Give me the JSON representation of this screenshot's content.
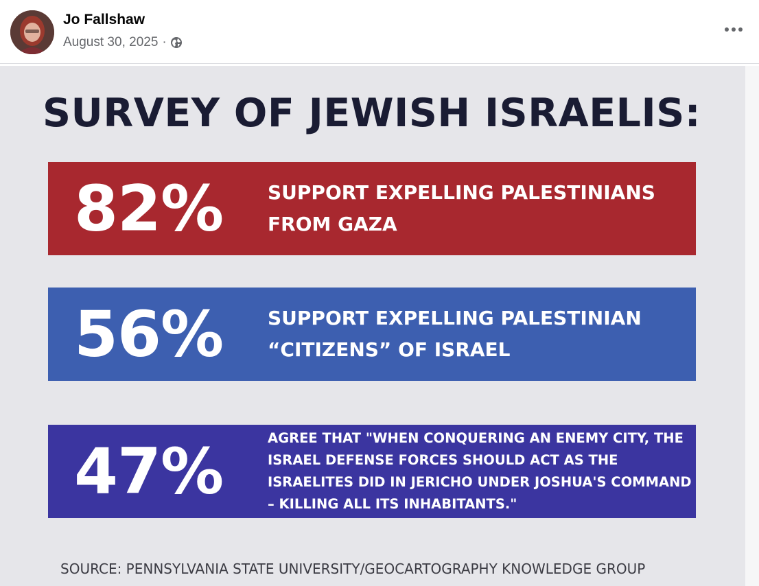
{
  "post": {
    "author_name": "Jo Fallshaw",
    "date": "August 30, 2025",
    "separator": "·",
    "audience_icon": "globe-icon",
    "more_icon": "more-options-icon"
  },
  "graphic": {
    "title": "SURVEY OF JEWISH ISRAELIS:",
    "stats": [
      {
        "percent": "82%",
        "text": "SUPPORT EXPELLING PALESTINIANS FROM GAZA",
        "color": "#a8282f"
      },
      {
        "percent": "56%",
        "text": "SUPPORT EXPELLING PALESTINIAN “CITIZENS” OF ISRAEL",
        "color": "#3d5fb0"
      },
      {
        "percent": "47%",
        "text": "AGREE THAT \"WHEN CONQUERING AN ENEMY CITY, THE ISRAEL DEFENSE FORCES SHOULD ACT AS THE ISRAELITES DID IN JERICHO UNDER JOSHUA'S COMMAND – KILLING ALL ITS INHABITANTS.\"",
        "color": "#3b35a0"
      }
    ],
    "source": "SOURCE: PENNSYLVANIA STATE UNIVERSITY/GEOCARTOGRAPHY KNOWLEDGE GROUP"
  }
}
